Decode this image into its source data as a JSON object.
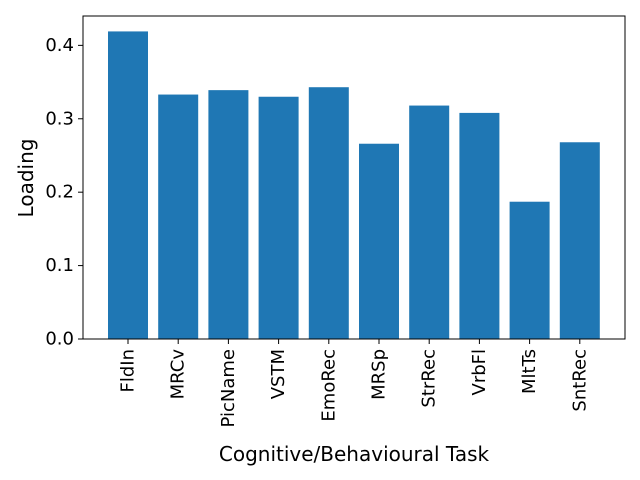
{
  "chart_data": {
    "type": "bar",
    "title": "",
    "xlabel": "Cognitive/Behavioural Task",
    "ylabel": "Loading",
    "categories": [
      "FldIn",
      "MRCv",
      "PicName",
      "VSTM",
      "EmoRec",
      "MRSp",
      "StrRec",
      "VrbFl",
      "MltTs",
      "SntRec"
    ],
    "values": [
      0.419,
      0.333,
      0.339,
      0.33,
      0.343,
      0.266,
      0.318,
      0.308,
      0.187,
      0.268
    ],
    "ylim": [
      0,
      0.44
    ],
    "yticks": [
      "0.0",
      "0.1",
      "0.2",
      "0.3",
      "0.4"
    ],
    "grid": false,
    "bar_color": "#1f77b4"
  }
}
